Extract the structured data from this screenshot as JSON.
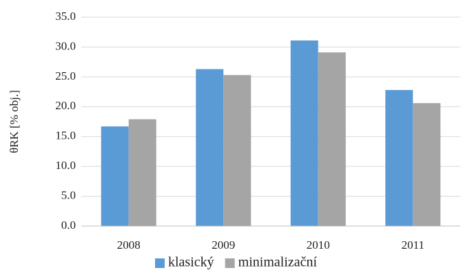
{
  "chart_data": {
    "type": "bar",
    "ylabel": "θRK [% obj.]",
    "categories": [
      "2008",
      "2009",
      "2010",
      "2011"
    ],
    "series": [
      {
        "name": "klasický",
        "color": "#5b9bd5",
        "values": [
          16.7,
          26.3,
          31.1,
          22.8
        ]
      },
      {
        "name": "minimalizační",
        "color": "#a5a5a5",
        "values": [
          17.9,
          25.3,
          29.1,
          20.6
        ]
      }
    ],
    "ylim": [
      0,
      35
    ],
    "yticks": [
      {
        "value": 0,
        "label": "0.0"
      },
      {
        "value": 5,
        "label": "5.0"
      },
      {
        "value": 10,
        "label": "10.0"
      },
      {
        "value": 15,
        "label": "15.0"
      },
      {
        "value": 20,
        "label": "20.0"
      },
      {
        "value": 25,
        "label": "25.0"
      },
      {
        "value": 30,
        "label": "30.0"
      },
      {
        "value": 35,
        "label": "35.0"
      }
    ],
    "grid": true,
    "legend": "bottom"
  }
}
